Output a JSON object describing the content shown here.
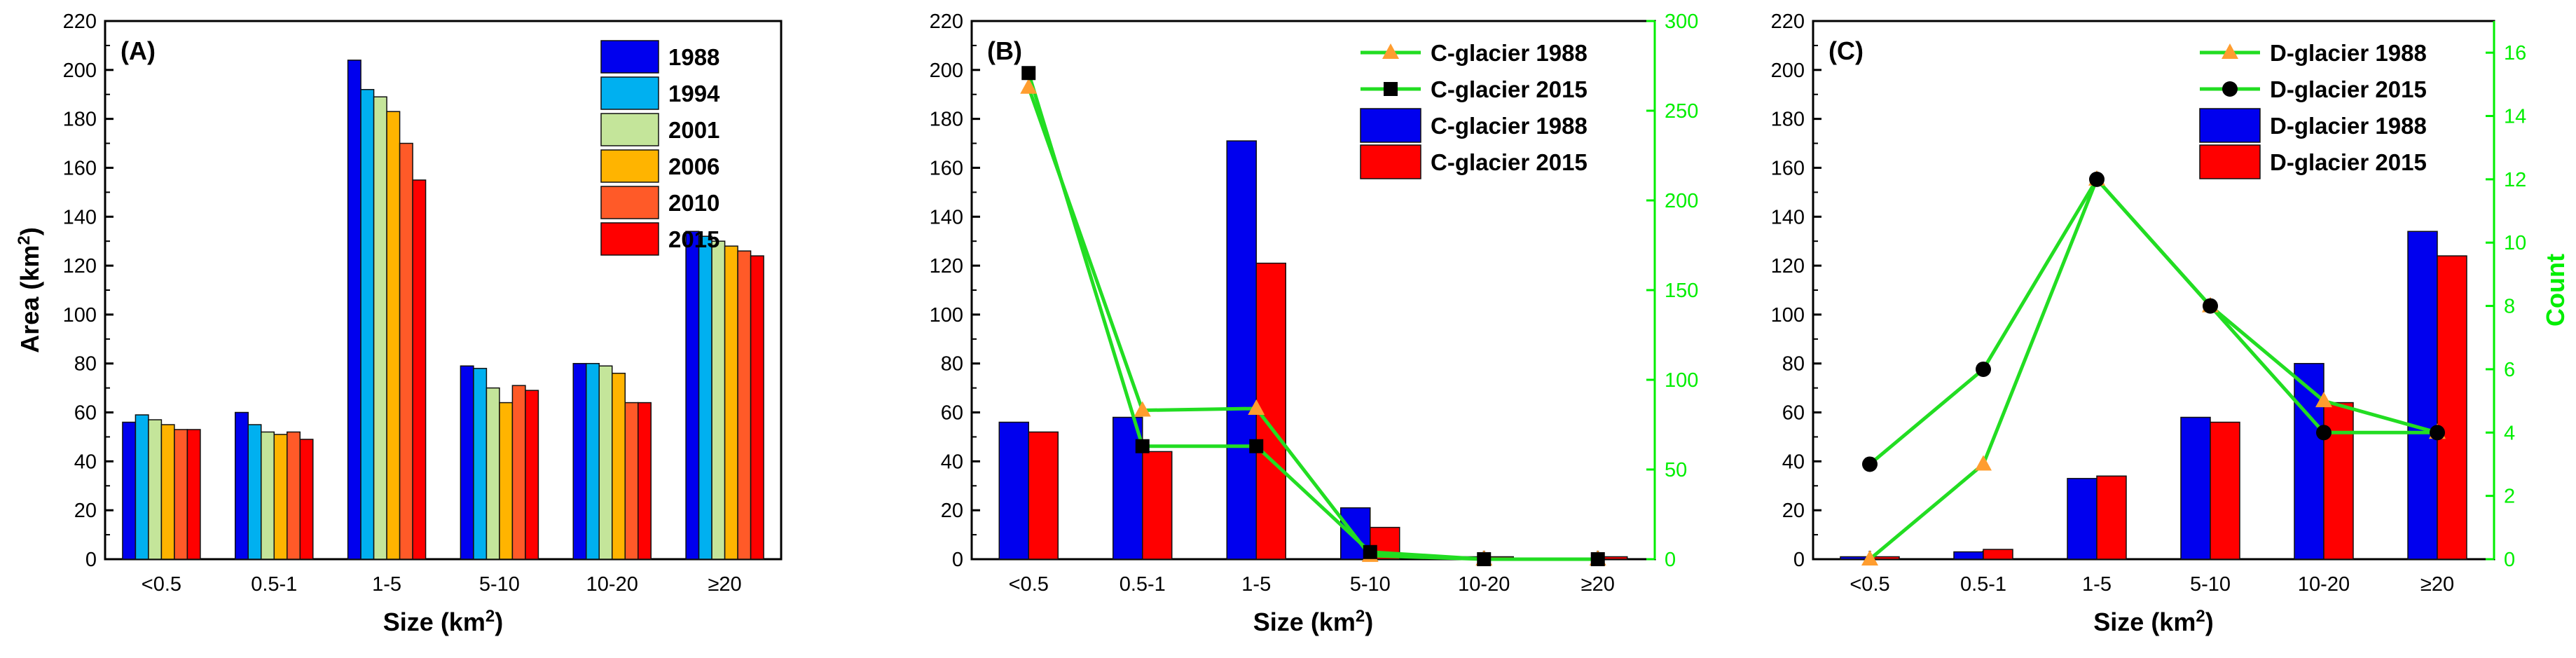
{
  "chart_data": [
    {
      "panel": "(A)",
      "type": "bar",
      "categories": [
        "<0.5",
        "0.5-1",
        "1-5",
        "5-10",
        "10-20",
        "≥20"
      ],
      "xlabel": "Size (km²)",
      "ylabel": "Area (km²)",
      "ylim": [
        0,
        220
      ],
      "yticks": [
        0,
        20,
        40,
        60,
        80,
        100,
        120,
        140,
        160,
        180,
        200,
        220
      ],
      "legend_position": "top-right",
      "series": [
        {
          "name": "1988",
          "color": "#0000ee",
          "values": [
            56,
            60,
            204,
            79,
            80,
            134
          ]
        },
        {
          "name": "1994",
          "color": "#00b0f0",
          "values": [
            59,
            55,
            192,
            78,
            80,
            132
          ]
        },
        {
          "name": "2001",
          "color": "#c4e59a",
          "values": [
            57,
            52,
            189,
            70,
            79,
            130
          ]
        },
        {
          "name": "2006",
          "color": "#ffb400",
          "values": [
            55,
            51,
            183,
            64,
            76,
            128
          ]
        },
        {
          "name": "2010",
          "color": "#ff5a28",
          "values": [
            53,
            52,
            170,
            71,
            64,
            126
          ]
        },
        {
          "name": "2015",
          "color": "#ff0000",
          "values": [
            53,
            49,
            155,
            69,
            64,
            124
          ]
        }
      ]
    },
    {
      "panel": "(B)",
      "type": "bar+line",
      "categories": [
        "<0.5",
        "0.5-1",
        "1-5",
        "5-10",
        "10-20",
        "≥20"
      ],
      "xlabel": "Size (km²)",
      "ylabel": "",
      "ylim": [
        0,
        220
      ],
      "yticks": [
        0,
        20,
        40,
        60,
        80,
        100,
        120,
        140,
        160,
        180,
        200,
        220
      ],
      "y2lim": [
        0,
        300
      ],
      "y2ticks": [
        0,
        50,
        100,
        150,
        200,
        250,
        300
      ],
      "legend_position": "top-right",
      "bars": [
        {
          "name": "C-glacier 1988",
          "color": "#0000ee",
          "values": [
            56,
            58,
            171,
            21,
            1,
            0
          ]
        },
        {
          "name": "C-glacier 2015",
          "color": "#ff0000",
          "values": [
            52,
            44,
            121,
            13,
            1,
            1
          ]
        }
      ],
      "lines": [
        {
          "name": "C-glacier 1988",
          "marker": "triangle",
          "marker_color": "#ff9d2f",
          "line_color": "#22dd22",
          "values": [
            263,
            83,
            84,
            2,
            0,
            0
          ]
        },
        {
          "name": "C-glacier 2015",
          "marker": "square",
          "marker_color": "#000000",
          "line_color": "#22dd22",
          "values": [
            271,
            63,
            63,
            4,
            0,
            0
          ]
        }
      ]
    },
    {
      "panel": "(C)",
      "type": "bar+line",
      "categories": [
        "<0.5",
        "0.5-1",
        "1-5",
        "5-10",
        "10-20",
        "≥20"
      ],
      "xlabel": "Size (km²)",
      "ylabel": "",
      "ylim": [
        0,
        220
      ],
      "yticks": [
        0,
        20,
        40,
        60,
        80,
        100,
        120,
        140,
        160,
        180,
        200,
        220
      ],
      "y2label": "Count",
      "y2lim": [
        0,
        17
      ],
      "y2ticks": [
        0,
        2,
        4,
        6,
        8,
        10,
        12,
        14,
        16
      ],
      "legend_position": "top-right",
      "bars": [
        {
          "name": "D-glacier 1988",
          "color": "#0000ee",
          "values": [
            1,
            3,
            33,
            58,
            80,
            134
          ]
        },
        {
          "name": "D-glacier 2015",
          "color": "#ff0000",
          "values": [
            1,
            4,
            34,
            56,
            64,
            124
          ]
        }
      ],
      "lines": [
        {
          "name": "D-glacier 1988",
          "marker": "triangle",
          "marker_color": "#ff9d2f",
          "line_color": "#22dd22",
          "values": [
            0,
            3,
            12,
            8,
            5,
            4
          ]
        },
        {
          "name": "D-glacier 2015",
          "marker": "circle",
          "marker_color": "#000000",
          "line_color": "#22dd22",
          "values": [
            3,
            6,
            12,
            8,
            4,
            4
          ]
        }
      ]
    }
  ]
}
